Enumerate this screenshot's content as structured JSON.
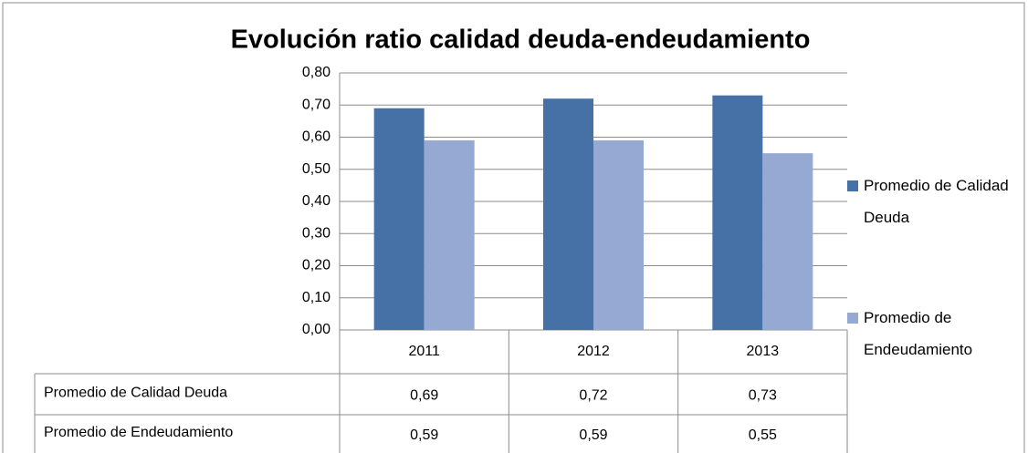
{
  "chart_data": {
    "type": "bar",
    "title": "Evolución ratio calidad deuda-endeudamiento",
    "categories": [
      "2011",
      "2012",
      "2013"
    ],
    "series": [
      {
        "name": "Promedio de Calidad Deuda",
        "color": "#4671a6",
        "values": [
          0.69,
          0.72,
          0.73
        ],
        "value_labels": [
          "0,69",
          "0,72",
          "0,73"
        ]
      },
      {
        "name": "Promedio de Endeudamiento",
        "color": "#96a9d3",
        "values": [
          0.59,
          0.59,
          0.55
        ],
        "value_labels": [
          "0,59",
          "0,59",
          "0,55"
        ]
      }
    ],
    "ylim": [
      0,
      0.8
    ],
    "yticks": [
      {
        "value": 0,
        "label": "0,00"
      },
      {
        "value": 0.1,
        "label": "0,10"
      },
      {
        "value": 0.2,
        "label": "0,20"
      },
      {
        "value": 0.3,
        "label": "0,30"
      },
      {
        "value": 0.4,
        "label": "0,40"
      },
      {
        "value": 0.5,
        "label": "0,50"
      },
      {
        "value": 0.6,
        "label": "0,60"
      },
      {
        "value": 0.7,
        "label": "0,70"
      },
      {
        "value": 0.8,
        "label": "0,80"
      }
    ],
    "grid": true,
    "legend": "right"
  }
}
